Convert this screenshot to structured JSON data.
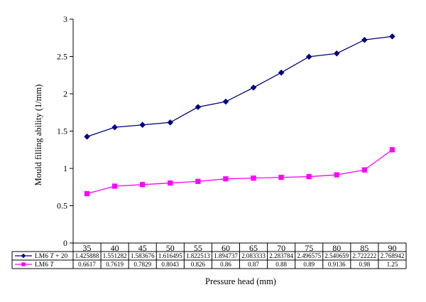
{
  "chart_data": {
    "type": "line",
    "xlabel": "Pressure head (mm)",
    "ylabel": "Mould filling ability (1/mm)",
    "ylim": [
      0,
      3
    ],
    "yticks": [
      "0",
      "0.5",
      "1",
      "1.5",
      "2",
      "2.5",
      "3"
    ],
    "grid": false,
    "legend": "data-table-rows",
    "categories": [
      "35",
      "40",
      "45",
      "50",
      "55",
      "60",
      "65",
      "70",
      "75",
      "80",
      "85",
      "90"
    ],
    "series": [
      {
        "name_prefix": "LM6 ",
        "name_italic": "T",
        "name_suffix": " + 20",
        "color": "#000080",
        "marker": "diamond",
        "values": [
          1.425888,
          1.551282,
          1.583676,
          1.616495,
          1.822513,
          1.894737,
          2.083333,
          2.283784,
          2.496575,
          2.540659,
          2.722222,
          2.768942
        ],
        "labels": [
          "1.425888",
          "1.551282",
          "1.583676",
          "1.616495",
          "1.822513",
          "1.894737",
          "2.083333",
          "2.283784",
          "2.496575",
          "2.540659",
          "2.722222",
          "2.768942"
        ]
      },
      {
        "name_prefix": "LM6 ",
        "name_italic": "T",
        "name_suffix": "",
        "color": "#ff00ff",
        "marker": "square",
        "values": [
          0.6617,
          0.7619,
          0.7829,
          0.8043,
          0.826,
          0.86,
          0.87,
          0.88,
          0.89,
          0.9136,
          0.98,
          1.25
        ],
        "labels": [
          "0.6617",
          "0.7619",
          "0.7829",
          "0.8043",
          "0.826",
          "0.86",
          "0.87",
          "0.88",
          "0.89",
          "0.9136",
          "0.98",
          "1.25"
        ]
      }
    ]
  }
}
